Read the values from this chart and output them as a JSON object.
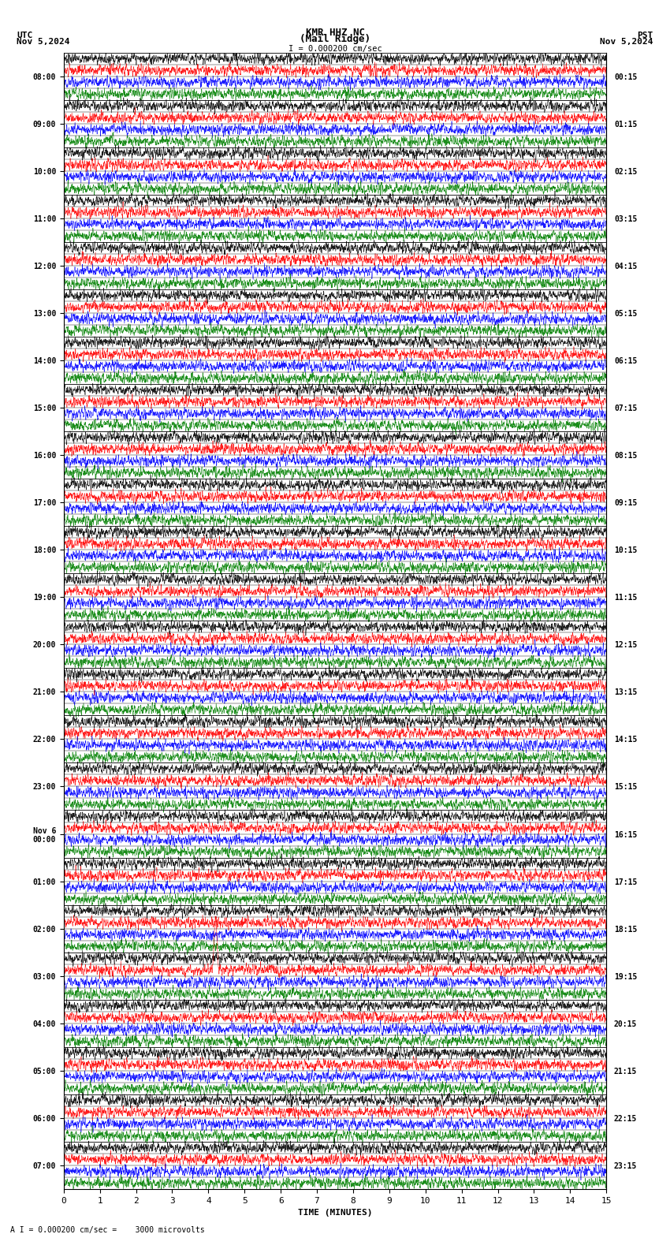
{
  "title_line1": "KMR HHZ NC",
  "title_line2": "(Mail Ridge)",
  "scale_label": "I = 0.000200 cm/sec",
  "footer_label": "A I = 0.000200 cm/sec =    3000 microvolts",
  "utc_label": "UTC",
  "utc_date": "Nov 5,2024",
  "pst_label": "PST",
  "pst_date": "Nov 5,2024",
  "xlabel": "TIME (MINUTES)",
  "xlim": [
    0,
    15
  ],
  "xticks": [
    0,
    1,
    2,
    3,
    4,
    5,
    6,
    7,
    8,
    9,
    10,
    11,
    12,
    13,
    14,
    15
  ],
  "left_times": [
    "08:00",
    "09:00",
    "10:00",
    "11:00",
    "12:00",
    "13:00",
    "14:00",
    "15:00",
    "16:00",
    "17:00",
    "18:00",
    "19:00",
    "20:00",
    "21:00",
    "22:00",
    "23:00",
    "Nov 6\n00:00",
    "01:00",
    "02:00",
    "03:00",
    "04:00",
    "05:00",
    "06:00",
    "07:00"
  ],
  "right_times": [
    "00:15",
    "01:15",
    "02:15",
    "03:15",
    "04:15",
    "05:15",
    "06:15",
    "07:15",
    "08:15",
    "09:15",
    "10:15",
    "11:15",
    "12:15",
    "13:15",
    "14:15",
    "15:15",
    "16:15",
    "17:15",
    "18:15",
    "19:15",
    "20:15",
    "21:15",
    "22:15",
    "23:15"
  ],
  "n_hours": 24,
  "traces_per_hour": 4,
  "trace_colors": [
    "black",
    "red",
    "blue",
    "green"
  ],
  "bg_color": "#ffffff",
  "fig_width": 8.5,
  "fig_height": 15.84,
  "dpi": 100,
  "earthquake_hour": 19,
  "earthquake_trace": 1,
  "earthquake_minute": 4.2,
  "noise_seed": 42
}
